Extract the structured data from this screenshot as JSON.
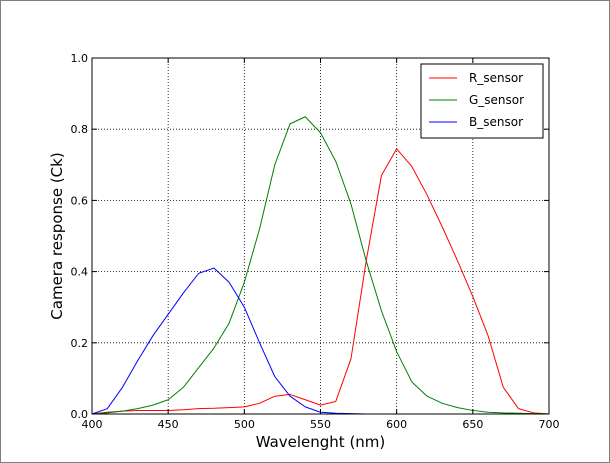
{
  "chart_data": {
    "type": "line",
    "title": "",
    "xlabel": "Wavelenght (nm)",
    "ylabel": "Camera response (Ck)",
    "xlim": [
      400,
      700
    ],
    "ylim": [
      0.0,
      1.0
    ],
    "xticks": [
      400,
      450,
      500,
      550,
      600,
      650,
      700
    ],
    "yticks": [
      0.0,
      0.2,
      0.4,
      0.6,
      0.8,
      1.0
    ],
    "xtick_labels": [
      "400",
      "450",
      "500",
      "550",
      "600",
      "650",
      "700"
    ],
    "ytick_labels": [
      "0.0",
      "0.2",
      "0.4",
      "0.6",
      "0.8",
      "1.0"
    ],
    "grid": true,
    "legend_position": "top-right",
    "x": [
      400,
      410,
      420,
      430,
      440,
      450,
      460,
      470,
      480,
      490,
      500,
      510,
      520,
      530,
      540,
      550,
      560,
      570,
      580,
      590,
      600,
      610,
      620,
      630,
      640,
      650,
      660,
      670,
      680,
      690,
      700
    ],
    "series": [
      {
        "name": "R_sensor",
        "color": "#ff0000",
        "values": [
          0.0,
          0.005,
          0.008,
          0.01,
          0.01,
          0.01,
          0.012,
          0.015,
          0.016,
          0.018,
          0.02,
          0.03,
          0.05,
          0.055,
          0.04,
          0.025,
          0.035,
          0.155,
          0.43,
          0.67,
          0.745,
          0.695,
          0.615,
          0.525,
          0.43,
          0.33,
          0.22,
          0.075,
          0.015,
          0.003,
          0.0
        ]
      },
      {
        "name": "G_sensor",
        "color": "#008000",
        "values": [
          0.0,
          0.003,
          0.008,
          0.015,
          0.025,
          0.04,
          0.075,
          0.13,
          0.185,
          0.255,
          0.37,
          0.52,
          0.7,
          0.815,
          0.835,
          0.79,
          0.71,
          0.59,
          0.43,
          0.29,
          0.175,
          0.09,
          0.05,
          0.03,
          0.018,
          0.01,
          0.005,
          0.003,
          0.002,
          0.001,
          0.0
        ]
      },
      {
        "name": "B_sensor",
        "color": "#0000ff",
        "values": [
          0.0,
          0.015,
          0.075,
          0.15,
          0.22,
          0.28,
          0.34,
          0.395,
          0.41,
          0.37,
          0.3,
          0.2,
          0.105,
          0.05,
          0.02,
          0.005,
          0.002,
          0.001,
          0.0,
          0.0,
          0.0,
          0.0,
          0.0,
          0.0,
          0.0,
          0.0,
          0.0,
          0.0,
          0.0,
          0.0,
          0.0
        ]
      }
    ]
  }
}
